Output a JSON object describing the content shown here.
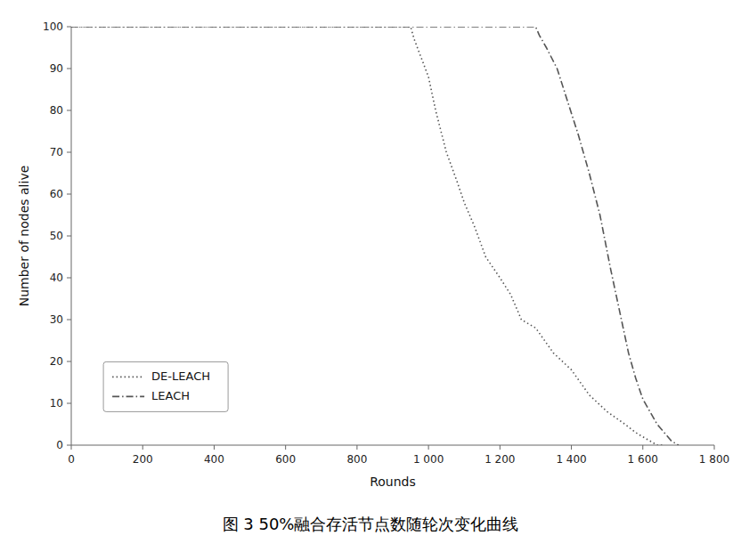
{
  "chart_data": {
    "type": "line",
    "xlabel": "Rounds",
    "ylabel": "Number of nodes alive",
    "caption": "图 3    50%融合存活节点数随轮次变化曲线",
    "xlim": [
      0,
      1800
    ],
    "ylim": [
      0,
      100
    ],
    "xticks": [
      0,
      200,
      400,
      600,
      800,
      {
        "value": 1000,
        "label": "1 000"
      },
      {
        "value": 1200,
        "label": "1 200"
      },
      {
        "value": 1400,
        "label": "1 400"
      },
      {
        "value": 1600,
        "label": "1 600"
      },
      {
        "value": 1800,
        "label": "1 800"
      }
    ],
    "yticks": [
      0,
      10,
      20,
      30,
      40,
      50,
      60,
      70,
      80,
      90,
      100
    ],
    "legend": "lower left",
    "series": [
      {
        "name": "DE-LEACH",
        "color": "#555555",
        "line_style": "dotted",
        "x": [
          0,
          950,
          960,
          1000,
          1020,
          1050,
          1080,
          1100,
          1130,
          1160,
          1200,
          1230,
          1260,
          1300,
          1350,
          1400,
          1450,
          1500,
          1550,
          1580,
          1600,
          1620,
          1640,
          1650,
          1660
        ],
        "values": [
          100,
          100,
          97,
          88,
          80,
          70,
          63,
          58,
          52,
          45,
          40,
          36,
          30,
          28,
          22,
          18,
          12,
          8,
          5,
          3,
          2,
          1,
          0,
          0,
          0
        ]
      },
      {
        "name": "LEACH",
        "color": "#555555",
        "line_style": "dashdot",
        "x": [
          0,
          1300,
          1310,
          1330,
          1360,
          1390,
          1420,
          1450,
          1480,
          1510,
          1540,
          1560,
          1580,
          1600,
          1620,
          1640,
          1660,
          1680,
          1700
        ],
        "values": [
          100,
          100,
          98,
          95,
          90,
          82,
          74,
          65,
          55,
          42,
          30,
          22,
          16,
          11,
          8,
          5,
          3,
          1,
          0
        ]
      }
    ]
  }
}
